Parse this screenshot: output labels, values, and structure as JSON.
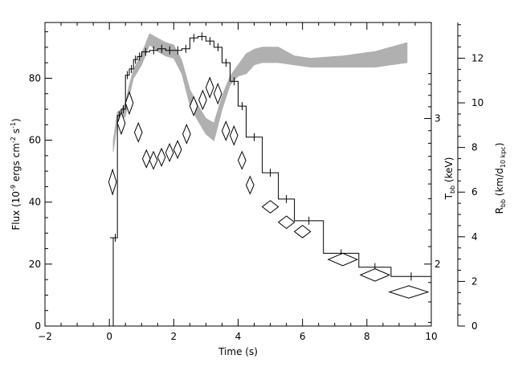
{
  "chart_data": {
    "type": "line",
    "title": "",
    "xlabel": "Time (s)",
    "ylabel_left": {
      "main": "Flux (10",
      "sup1": "-9",
      "mid": " ergs cm",
      "sup2": "-2",
      "mid2": " s",
      "sup3": "-1",
      "end": ")"
    },
    "ylabel_tbb": {
      "main": "T",
      "sub": "bb",
      "end": " (keV)"
    },
    "ylabel_rbb": {
      "main": "R",
      "sub": "bb",
      "mid": " (km/d",
      "sub2": "10 kpc",
      "end": ")"
    },
    "xlim": [
      -2,
      10
    ],
    "ylim_left": [
      0,
      98
    ],
    "ylim_rbb": [
      0,
      13.6
    ],
    "x_ticks": [
      -2,
      0,
      2,
      4,
      6,
      8,
      10
    ],
    "y_left_ticks": [
      0,
      20,
      40,
      60,
      80
    ],
    "y_rbb_ticks": [
      0,
      2,
      4,
      6,
      8,
      10,
      12
    ],
    "tbb_ticks": [
      {
        "label": "2",
        "left_value": 20.0
      },
      {
        "label": "3",
        "left_value": 67.0
      }
    ],
    "series": [
      {
        "style": "step-errorbar",
        "axis": "left",
        "color": "#000000",
        "edges": [
          0.12,
          0.25,
          0.37,
          0.5,
          0.62,
          0.75,
          0.87,
          1.0,
          1.25,
          1.5,
          1.75,
          2.0,
          2.25,
          2.5,
          2.75,
          3.0,
          3.25,
          3.5,
          3.75,
          4.0,
          4.25,
          4.75,
          5.25,
          5.75,
          6.65,
          7.75,
          8.75,
          10.0
        ],
        "values": [
          28.5,
          68,
          70,
          81,
          83,
          86,
          87,
          88.5,
          89,
          89.5,
          89,
          89,
          89.5,
          93,
          93.5,
          92,
          90,
          85,
          79,
          71,
          61,
          49.5,
          41,
          34,
          23.5,
          19,
          16
        ]
      },
      {
        "style": "diamonds",
        "axis": "left",
        "color": "#000000",
        "points": [
          {
            "x": 0.1,
            "y": 46.5,
            "w": 0.12,
            "h": 4
          },
          {
            "x": 0.37,
            "y": 65.5,
            "w": 0.12,
            "h": 3.5
          },
          {
            "x": 0.62,
            "y": 72,
            "w": 0.12,
            "h": 3.5
          },
          {
            "x": 0.9,
            "y": 62.5,
            "w": 0.12,
            "h": 3
          },
          {
            "x": 1.15,
            "y": 54,
            "w": 0.12,
            "h": 2.8
          },
          {
            "x": 1.37,
            "y": 53.5,
            "w": 0.12,
            "h": 2.8
          },
          {
            "x": 1.62,
            "y": 54.5,
            "w": 0.12,
            "h": 2.8
          },
          {
            "x": 1.87,
            "y": 56,
            "w": 0.12,
            "h": 2.8
          },
          {
            "x": 2.12,
            "y": 57,
            "w": 0.12,
            "h": 2.8
          },
          {
            "x": 2.4,
            "y": 62,
            "w": 0.12,
            "h": 3
          },
          {
            "x": 2.62,
            "y": 71,
            "w": 0.12,
            "h": 3
          },
          {
            "x": 2.9,
            "y": 73,
            "w": 0.12,
            "h": 3
          },
          {
            "x": 3.12,
            "y": 77,
            "w": 0.12,
            "h": 3.2
          },
          {
            "x": 3.37,
            "y": 75,
            "w": 0.12,
            "h": 3.2
          },
          {
            "x": 3.62,
            "y": 63,
            "w": 0.12,
            "h": 3
          },
          {
            "x": 3.87,
            "y": 61.5,
            "w": 0.12,
            "h": 3
          },
          {
            "x": 4.12,
            "y": 53.5,
            "w": 0.12,
            "h": 2.8
          },
          {
            "x": 4.37,
            "y": 45.5,
            "w": 0.12,
            "h": 2.8
          },
          {
            "x": 5.0,
            "y": 38.5,
            "w": 0.25,
            "h": 2
          },
          {
            "x": 5.5,
            "y": 33.5,
            "w": 0.25,
            "h": 2
          },
          {
            "x": 6.0,
            "y": 30.5,
            "w": 0.25,
            "h": 2
          },
          {
            "x": 7.25,
            "y": 21.5,
            "w": 0.45,
            "h": 2
          },
          {
            "x": 8.25,
            "y": 16.5,
            "w": 0.45,
            "h": 2
          },
          {
            "x": 9.3,
            "y": 11,
            "w": 0.6,
            "h": 2
          }
        ]
      },
      {
        "style": "band",
        "axis": "rbb",
        "color": "#b0b0b0",
        "x": [
          0.12,
          0.25,
          0.37,
          0.5,
          0.62,
          0.75,
          1.0,
          1.25,
          1.5,
          1.75,
          2.0,
          2.25,
          2.5,
          2.75,
          3.0,
          3.25,
          3.5,
          3.75,
          4.0,
          4.25,
          4.5,
          4.75,
          5.25,
          5.75,
          6.25,
          7.25,
          8.25,
          9.25
        ],
        "lower": [
          7.8,
          9.1,
          9.2,
          9.4,
          10.3,
          11.1,
          11.7,
          12.6,
          12.3,
          12.1,
          12.0,
          11.3,
          9.9,
          9.2,
          8.6,
          8.3,
          9.7,
          10.8,
          11.2,
          11.3,
          11.7,
          11.8,
          11.8,
          11.7,
          11.6,
          11.6,
          11.6,
          11.8
        ],
        "upper": [
          8.3,
          9.6,
          9.7,
          10.0,
          10.8,
          11.5,
          12.2,
          13.1,
          12.9,
          12.7,
          12.6,
          11.9,
          10.6,
          9.9,
          9.3,
          9.1,
          10.3,
          11.2,
          11.7,
          12.2,
          12.4,
          12.5,
          12.5,
          12.1,
          12.0,
          12.1,
          12.3,
          12.7
        ]
      }
    ],
    "grid": false,
    "legend": "none"
  }
}
